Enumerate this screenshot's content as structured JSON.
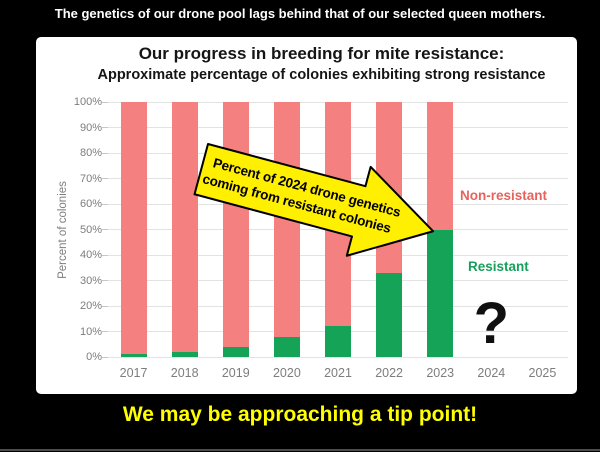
{
  "banners": {
    "top": "The genetics of our drone pool lags behind that of our selected queen mothers.",
    "bottom": "We may be approaching a tip point!"
  },
  "chart_data": {
    "type": "bar",
    "subtype": "stacked-vertical",
    "title": "Our progress in breeding for mite resistance:",
    "subtitle": "Approximate percentage of colonies exhibiting strong resistance",
    "ylabel": "Percent of colonies",
    "xlabel": "",
    "ylim": [
      0,
      100
    ],
    "ytick_step": 10,
    "ytick_suffix": "%",
    "grid": "horizontal",
    "categories": [
      "2017",
      "2018",
      "2019",
      "2020",
      "2021",
      "2022",
      "2023",
      "2024",
      "2025"
    ],
    "series": [
      {
        "name": "Resistant",
        "color": "#15a358",
        "values": [
          1,
          2,
          4,
          8,
          12,
          33,
          50,
          null,
          null
        ]
      },
      {
        "name": "Non-resistant",
        "color": "#f48080",
        "values": [
          99,
          98,
          96,
          92,
          88,
          67,
          50,
          null,
          null
        ]
      }
    ],
    "legend": [
      {
        "label": "Non-resistant",
        "color": "#e8625d",
        "position": "right-upper"
      },
      {
        "label": "Resistant",
        "color": "#17a05b",
        "position": "right-lower"
      }
    ],
    "annotations": {
      "arrow": {
        "line1": "Percent of 2024 drone genetics",
        "line2": "coming from resistant colonies",
        "fill": "#ffef00",
        "points_to": "2023 resistant segment top (50%)"
      },
      "question_mark": {
        "text": "?",
        "category": "2024"
      }
    }
  },
  "colors": {
    "background": "#000000",
    "panel": "#ffffff",
    "banner_top_text": "#ffffff",
    "banner_bottom_text": "#ffff00",
    "axis_text": "#7d7d7d"
  }
}
